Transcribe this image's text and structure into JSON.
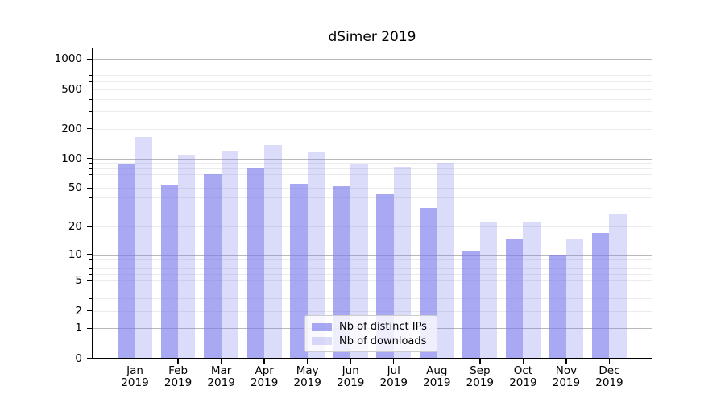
{
  "title": "dSimer 2019",
  "legend": {
    "items": [
      {
        "label": "Nb of distinct IPs"
      },
      {
        "label": "Nb of downloads"
      }
    ],
    "position": "inside lower-center"
  },
  "colors": {
    "bar_base": "#7b7bec",
    "bar_dark_composite": "#a9a9f3",
    "bar_light_composite": "#dbdbf8",
    "grid_major": "#b8b8b8",
    "grid_minor": "#ebebeb",
    "axis": "#000000",
    "legend_border": "#cccccc",
    "background": "#ffffff"
  },
  "chart_data": {
    "type": "bar",
    "title": "dSimer 2019",
    "x_months": [
      "Jan",
      "Feb",
      "Mar",
      "Apr",
      "May",
      "Jun",
      "Jul",
      "Aug",
      "Sep",
      "Oct",
      "Nov",
      "Dec"
    ],
    "x_year": "2019",
    "categories": [
      "Jan 2019",
      "Feb 2019",
      "Mar 2019",
      "Apr 2019",
      "May 2019",
      "Jun 2019",
      "Jul 2019",
      "Aug 2019",
      "Sep 2019",
      "Oct 2019",
      "Nov 2019",
      "Dec 2019"
    ],
    "series": [
      {
        "name": "Nb of distinct IPs",
        "alpha": 0.65,
        "values": [
          88,
          54,
          70,
          80,
          55,
          52,
          43,
          31,
          11,
          15,
          10,
          17
        ]
      },
      {
        "name": "Nb of downloads",
        "alpha": 0.27,
        "values": [
          164,
          110,
          119,
          137,
          118,
          87,
          82,
          91,
          22,
          22,
          15,
          27
        ]
      }
    ],
    "xlabel": "",
    "ylabel": "",
    "y_scale": "log10(value+1)",
    "y_ticks": [
      0,
      1,
      2,
      5,
      10,
      20,
      50,
      100,
      200,
      500,
      1000
    ],
    "ylim": [
      0,
      1250
    ],
    "grid": {
      "major": [
        1,
        10,
        100,
        1000
      ],
      "minor_per_decade": [
        2,
        3,
        4,
        5,
        6,
        7,
        8,
        9
      ]
    },
    "legend_position": "inside lower-center"
  }
}
